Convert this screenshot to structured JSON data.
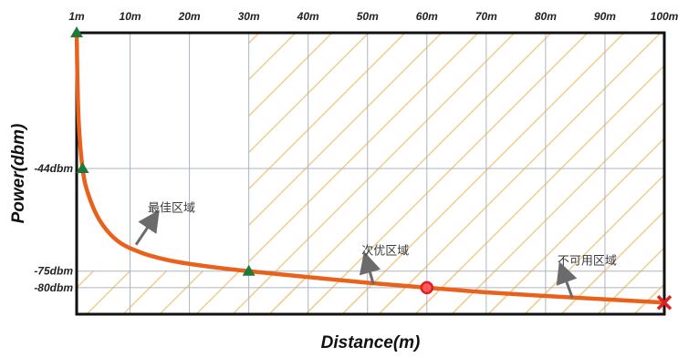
{
  "chart_data": {
    "type": "line",
    "title": "",
    "xlabel": "Distance(m)",
    "ylabel": "Power(dbm)",
    "x_ticks": [
      1,
      10,
      20,
      30,
      40,
      50,
      60,
      70,
      80,
      90,
      100
    ],
    "x_tick_labels": [
      "1m",
      "10m",
      "20m",
      "30m",
      "40m",
      "50m",
      "60m",
      "70m",
      "80m",
      "90m",
      "100m"
    ],
    "y_ticks": [
      -44,
      -75,
      -80
    ],
    "y_tick_labels": [
      "-44dbm",
      "-75dbm",
      "-80dbm"
    ],
    "xlim": [
      1,
      100
    ],
    "ylim": [
      -88,
      -3
    ],
    "grid": true,
    "line_color": "#e8621c",
    "hatch_color": "#f2c98a",
    "series": [
      {
        "values": [
          {
            "x": 1,
            "y": -3
          },
          {
            "x": 1.3,
            "y": -28
          },
          {
            "x": 2,
            "y": -44
          },
          {
            "x": 3,
            "y": -52
          },
          {
            "x": 5,
            "y": -60
          },
          {
            "x": 8,
            "y": -66
          },
          {
            "x": 12,
            "y": -69.5
          },
          {
            "x": 16,
            "y": -71.5
          },
          {
            "x": 20,
            "y": -72.8
          },
          {
            "x": 25,
            "y": -74
          },
          {
            "x": 30,
            "y": -75
          },
          {
            "x": 40,
            "y": -76.8
          },
          {
            "x": 50,
            "y": -78.5
          },
          {
            "x": 60,
            "y": -80
          },
          {
            "x": 70,
            "y": -81.4
          },
          {
            "x": 80,
            "y": -82.5
          },
          {
            "x": 90,
            "y": -83.5
          },
          {
            "x": 100,
            "y": -84.5
          }
        ]
      }
    ],
    "markers": [
      {
        "x": 1,
        "y": -3,
        "shape": "triangle",
        "color": "#1f7a3a"
      },
      {
        "x": 2,
        "y": -44,
        "shape": "triangle",
        "color": "#1f7a3a"
      },
      {
        "x": 30,
        "y": -75,
        "shape": "triangle",
        "color": "#1f7a3a"
      },
      {
        "x": 60,
        "y": -80,
        "shape": "circle",
        "color": "#e02020"
      },
      {
        "x": 100,
        "y": -84.5,
        "shape": "cross",
        "color": "#e02020"
      }
    ],
    "annotations": [
      {
        "text": "最佳区域",
        "label_x": 13,
        "label_y": -57,
        "arrow_to_x": 11,
        "arrow_to_y": -67
      },
      {
        "text": "次优区域",
        "label_x": 49,
        "label_y": -70,
        "arrow_to_x": 51,
        "arrow_to_y": -79
      },
      {
        "text": "不可用区域",
        "label_x": 82,
        "label_y": -73,
        "arrow_to_x": 84.5,
        "arrow_to_y": -83
      }
    ]
  }
}
